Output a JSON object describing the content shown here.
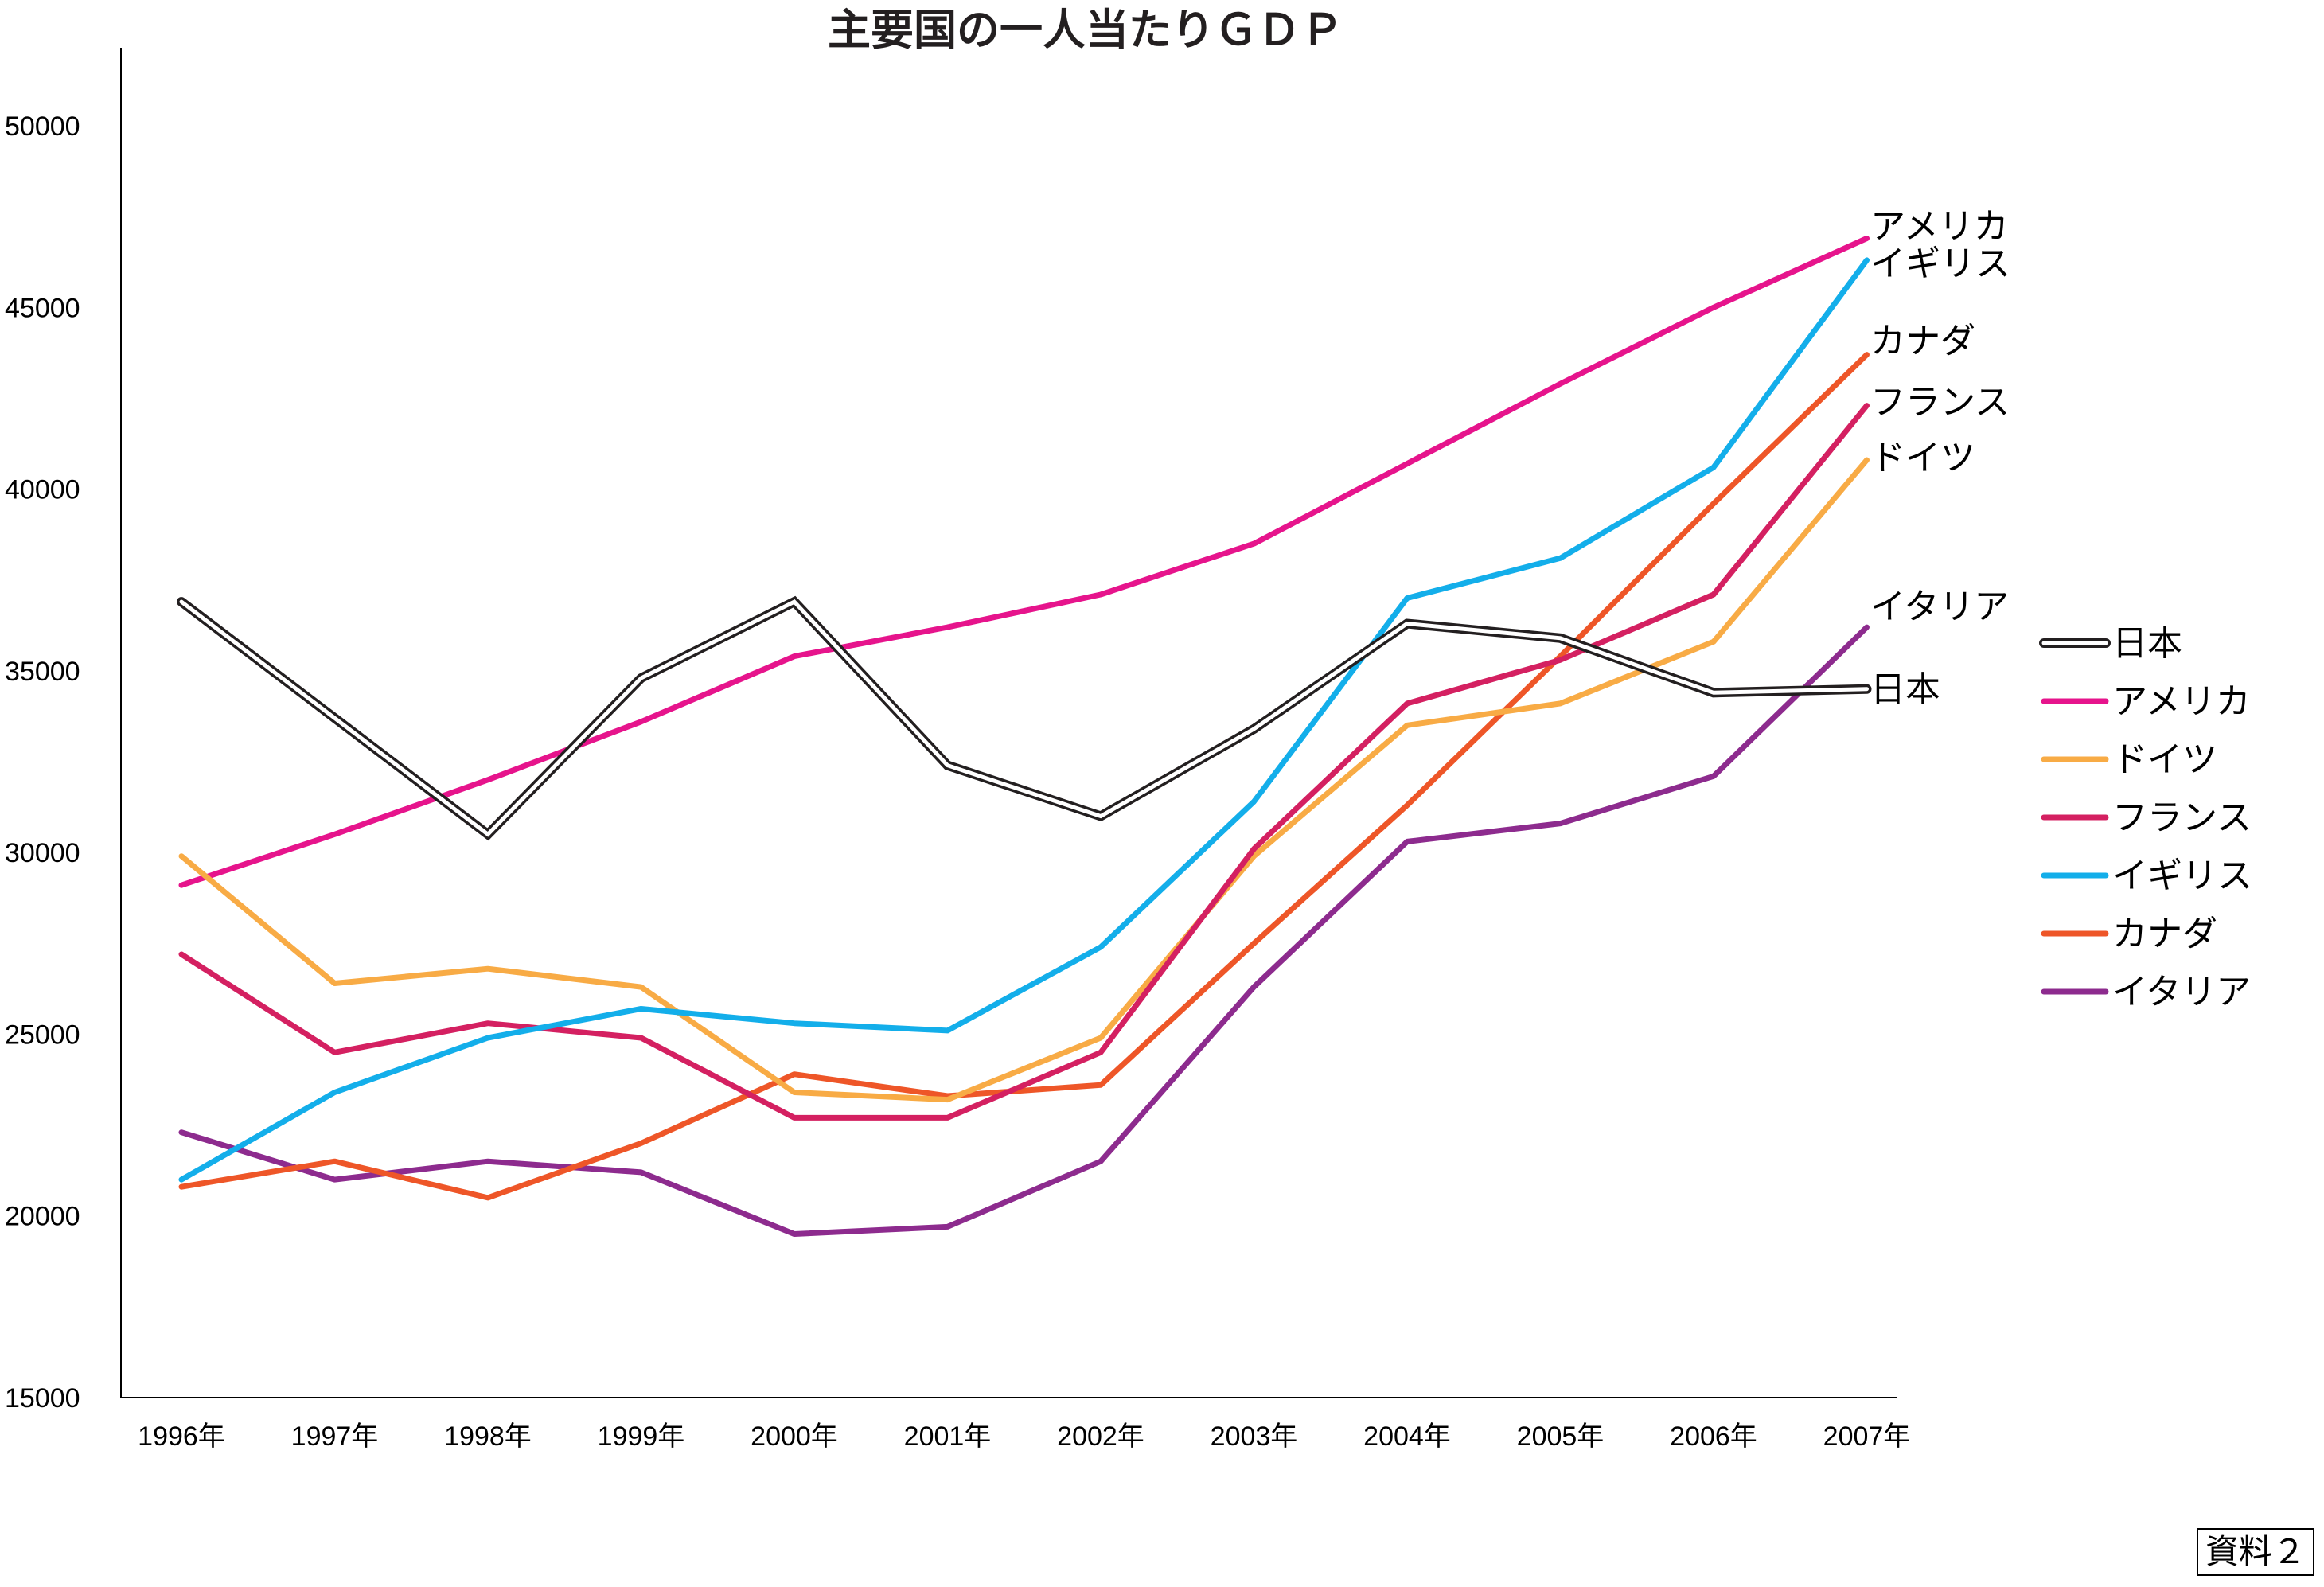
{
  "chart_data": {
    "type": "line",
    "title": "主要国の一人当たりＧＤＰ",
    "xlabel": "",
    "ylabel": "",
    "ylim": [
      15000,
      52000
    ],
    "yticks": [
      50000,
      45000,
      40000,
      35000,
      30000,
      25000,
      20000,
      15000
    ],
    "categories": [
      "1996年",
      "1997年",
      "1998年",
      "1999年",
      "2000年",
      "2001年",
      "2002年",
      "2003年",
      "2004年",
      "2005年",
      "2006年",
      "2007年"
    ],
    "grid": false,
    "legend_position": "right",
    "series": [
      {
        "name": "日本",
        "color": "#231f20",
        "style": "double",
        "values": [
          36900,
          33700,
          30500,
          34800,
          36900,
          32400,
          31000,
          33400,
          36300,
          35900,
          34400,
          34500
        ]
      },
      {
        "name": "アメリカ",
        "color": "#e6148c",
        "values": [
          29100,
          30500,
          32000,
          33600,
          35400,
          36200,
          37100,
          38500,
          40700,
          42900,
          45000,
          46900
        ]
      },
      {
        "name": "ドイツ",
        "color": "#f8ab45",
        "values": [
          29900,
          26400,
          26800,
          26300,
          23400,
          23200,
          24900,
          29900,
          33500,
          34100,
          35800,
          40800
        ]
      },
      {
        "name": "フランス",
        "color": "#d42061",
        "values": [
          27200,
          24500,
          25300,
          24900,
          22700,
          22700,
          24500,
          30100,
          34100,
          35300,
          37100,
          42300
        ]
      },
      {
        "name": "イギリス",
        "color": "#13aeea",
        "values": [
          21000,
          23400,
          24900,
          25700,
          25300,
          25100,
          27400,
          31400,
          37000,
          38100,
          40600,
          46300
        ]
      },
      {
        "name": "カナダ",
        "color": "#ee5628",
        "values": [
          20800,
          21500,
          20500,
          22000,
          23900,
          23300,
          23600,
          27500,
          31300,
          35400,
          39600,
          43700
        ]
      },
      {
        "name": "イタリア",
        "color": "#8d2b8e",
        "values": [
          22300,
          21000,
          21500,
          21200,
          19500,
          19700,
          21500,
          26300,
          30300,
          30800,
          32100,
          36200
        ]
      }
    ],
    "end_labels": [
      "アメリカ",
      "イギリス",
      "カナダ",
      "フランス",
      "ドイツ",
      "イタリア",
      "日本"
    ],
    "legend": [
      "日本",
      "アメリカ",
      "ドイツ",
      "フランス",
      "イギリス",
      "カナダ",
      "イタリア"
    ]
  },
  "source_label": "資料２"
}
